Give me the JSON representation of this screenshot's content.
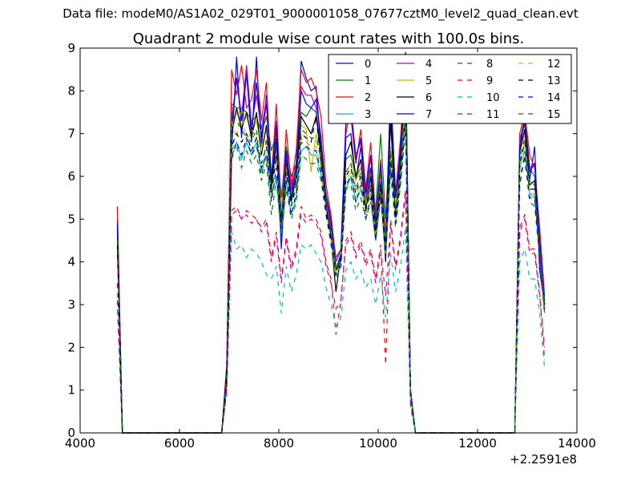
{
  "suptitle": "Data file: modeM0/AS1A02_029T01_9000001058_07677cztM0_level2_quad_clean.evt",
  "chart_data": {
    "type": "line",
    "title": "Quadrant 2 module wise count rates with 100.0s bins.",
    "xlabel": "",
    "ylabel": "",
    "xlim": [
      4000,
      14000
    ],
    "ylim": [
      0,
      9
    ],
    "x_offset_label": "+2.2591e8",
    "xticks": [
      4000,
      6000,
      8000,
      10000,
      12000,
      14000
    ],
    "yticks": [
      0,
      1,
      2,
      3,
      4,
      5,
      6,
      7,
      8,
      9
    ],
    "legend_position": "top-right",
    "x": [
      4750,
      4850,
      4950,
      5050,
      6850,
      6950,
      7050,
      7150,
      7250,
      7350,
      7450,
      7550,
      7650,
      7750,
      7850,
      7950,
      8050,
      8150,
      8250,
      8350,
      8450,
      8550,
      8650,
      8750,
      8850,
      8950,
      9050,
      9150,
      9250,
      9350,
      9450,
      9550,
      9650,
      9750,
      9850,
      9950,
      10050,
      10150,
      10250,
      10350,
      10450,
      10550,
      10650,
      10750,
      10850,
      12750,
      12850,
      12950,
      13050,
      13150,
      13250,
      13350
    ],
    "series": [
      {
        "name": "0",
        "color": "#0000ff",
        "dash": "solid",
        "values": [
          5.0,
          0,
          0,
          0,
          0,
          1.5,
          6.6,
          8.8,
          6.9,
          8.5,
          6.8,
          8.8,
          6.7,
          7.9,
          5.7,
          6.8,
          4.3,
          6.4,
          5.6,
          6.3,
          8.7,
          8.3,
          8.0,
          8.1,
          6.6,
          5.4,
          4.8,
          3.9,
          4.0,
          6.9,
          7.0,
          5.9,
          6.7,
          5.4,
          6.2,
          4.6,
          5.9,
          4.4,
          7.7,
          5.1,
          6.6,
          8.9,
          1.0,
          0,
          0,
          0,
          6.5,
          7.5,
          5.9,
          6.7,
          3.8,
          3.0
        ]
      },
      {
        "name": "1",
        "color": "#008000",
        "dash": "solid",
        "values": [
          4.7,
          0,
          0,
          0,
          0,
          1.3,
          7.7,
          7.6,
          7.6,
          7.5,
          7.3,
          7.4,
          7.0,
          7.4,
          6.6,
          7.0,
          5.5,
          6.7,
          6.0,
          6.3,
          7.5,
          7.4,
          7.6,
          7.5,
          6.3,
          5.6,
          5.0,
          4.1,
          4.3,
          6.4,
          6.5,
          6.0,
          6.2,
          5.7,
          6.1,
          5.2,
          7.0,
          5.0,
          7.2,
          5.5,
          6.5,
          8.1,
          1.0,
          0,
          0,
          0,
          6.8,
          7.4,
          6.2,
          6.0,
          4.6,
          3.0
        ]
      },
      {
        "name": "2",
        "color": "#ff0000",
        "dash": "solid",
        "values": [
          5.3,
          0,
          0,
          0,
          0,
          1.6,
          8.5,
          7.9,
          8.6,
          7.6,
          7.8,
          8.5,
          7.3,
          8.2,
          5.9,
          7.7,
          5.1,
          7.1,
          5.8,
          6.6,
          8.5,
          8.2,
          8.3,
          8.0,
          7.4,
          5.8,
          5.1,
          4.0,
          4.3,
          7.3,
          7.4,
          6.3,
          7.1,
          5.7,
          6.8,
          5.0,
          6.4,
          4.6,
          7.9,
          5.6,
          6.9,
          8.6,
          1.0,
          0,
          0,
          0,
          7.0,
          7.5,
          6.5,
          6.2,
          4.8,
          3.2
        ]
      },
      {
        "name": "3",
        "color": "#00bfbf",
        "dash": "solid",
        "values": [
          4.5,
          0,
          0,
          0,
          0,
          1.2,
          6.6,
          6.8,
          6.4,
          6.8,
          6.5,
          6.8,
          6.1,
          6.5,
          5.5,
          6.0,
          4.6,
          5.9,
          5.1,
          5.5,
          6.6,
          6.7,
          6.5,
          6.5,
          6.0,
          5.3,
          4.6,
          3.8,
          4.0,
          5.7,
          6.0,
          5.4,
          5.7,
          5.3,
          5.6,
          4.6,
          5.6,
          4.2,
          6.3,
          5.0,
          6.0,
          7.4,
          0.9,
          0,
          0,
          0,
          6.2,
          6.6,
          5.6,
          5.5,
          4.2,
          2.8
        ]
      },
      {
        "name": "4",
        "color": "#bf00bf",
        "dash": "solid",
        "values": [
          4.9,
          0,
          0,
          0,
          0,
          1.4,
          7.3,
          8.3,
          7.4,
          8.6,
          7.2,
          7.9,
          7.1,
          7.8,
          5.9,
          7.3,
          5.0,
          6.6,
          5.7,
          6.3,
          8.1,
          7.9,
          7.9,
          7.6,
          6.5,
          5.4,
          4.9,
          4.0,
          4.3,
          7.0,
          7.6,
          6.5,
          6.8,
          5.4,
          6.5,
          4.8,
          6.2,
          4.3,
          8.1,
          5.5,
          6.7,
          8.5,
          1.0,
          0,
          0,
          0,
          6.9,
          7.2,
          6.2,
          6.3,
          4.6,
          3.1
        ]
      },
      {
        "name": "5",
        "color": "#bfbf00",
        "dash": "solid",
        "values": [
          4.6,
          0,
          0,
          0,
          0,
          1.3,
          7.2,
          7.5,
          7.2,
          7.4,
          7.0,
          7.3,
          6.7,
          7.1,
          6.0,
          6.8,
          5.2,
          6.3,
          5.6,
          6.0,
          7.2,
          7.1,
          6.1,
          7.0,
          6.5,
          5.3,
          4.7,
          3.9,
          4.1,
          6.1,
          6.3,
          5.9,
          6.2,
          5.4,
          5.7,
          5.0,
          6.1,
          4.5,
          6.7,
          5.3,
          6.2,
          7.8,
          0.9,
          0,
          0,
          0,
          6.5,
          7.0,
          5.9,
          5.8,
          4.4,
          2.9
        ]
      },
      {
        "name": "6",
        "color": "#000000",
        "dash": "solid",
        "values": [
          4.8,
          0,
          0,
          0,
          0,
          1.4,
          7.0,
          7.6,
          7.1,
          7.5,
          6.9,
          7.5,
          6.5,
          7.2,
          5.8,
          6.9,
          4.9,
          6.4,
          5.4,
          6.0,
          7.4,
          7.2,
          7.0,
          7.4,
          6.6,
          5.3,
          4.6,
          3.3,
          4.2,
          6.5,
          6.8,
          6.0,
          6.4,
          5.2,
          6.0,
          4.6,
          5.8,
          4.0,
          7.4,
          5.0,
          6.3,
          8.9,
          1.0,
          0,
          0,
          0,
          6.6,
          7.1,
          5.8,
          5.9,
          4.3,
          2.9
        ]
      },
      {
        "name": "7",
        "color": "#0000ff",
        "dash": "solid",
        "values": [
          4.9,
          0,
          0,
          0,
          0,
          1.4,
          7.1,
          8.3,
          7.3,
          8.4,
          7.0,
          8.2,
          6.9,
          7.7,
          6.0,
          7.2,
          4.8,
          6.6,
          5.5,
          6.2,
          8.0,
          7.7,
          7.6,
          7.8,
          6.9,
          5.5,
          5.0,
          3.8,
          4.2,
          7.2,
          7.6,
          6.4,
          6.9,
          5.6,
          6.5,
          4.9,
          6.3,
          4.3,
          8.1,
          5.5,
          6.6,
          8.7,
          1.0,
          0,
          0,
          0,
          6.7,
          7.3,
          6.1,
          6.3,
          4.5,
          3.0
        ]
      },
      {
        "name": "8",
        "color": "#008000",
        "dash": "dashed",
        "values": [
          4.2,
          0,
          0,
          0,
          0,
          1.2,
          6.5,
          6.7,
          6.2,
          6.6,
          6.3,
          6.5,
          5.9,
          6.3,
          5.1,
          5.9,
          4.6,
          5.7,
          5.0,
          5.4,
          6.5,
          6.4,
          6.3,
          6.3,
          5.9,
          5.1,
          4.4,
          3.6,
          3.9,
          5.7,
          5.8,
          5.2,
          5.5,
          5.0,
          5.4,
          4.5,
          5.5,
          4.1,
          6.1,
          4.8,
          5.8,
          7.1,
          0.9,
          0,
          0,
          0,
          6.0,
          6.4,
          5.4,
          5.3,
          4.1,
          2.8
        ]
      },
      {
        "name": "9",
        "color": "#ff0000",
        "dash": "dashed",
        "values": [
          3.5,
          0,
          0,
          0,
          0,
          1.0,
          5.2,
          5.3,
          5.0,
          5.2,
          5.1,
          5.0,
          4.8,
          5.0,
          4.1,
          4.7,
          3.6,
          4.6,
          3.9,
          4.3,
          5.3,
          5.0,
          5.1,
          5.0,
          4.7,
          4.0,
          3.6,
          2.3,
          3.1,
          4.5,
          4.7,
          4.2,
          4.5,
          4.0,
          4.3,
          3.6,
          4.4,
          1.6,
          5.0,
          3.9,
          4.6,
          5.7,
          0.7,
          0,
          0,
          0,
          4.8,
          5.1,
          4.3,
          4.3,
          3.3,
          1.7
        ]
      },
      {
        "name": "10",
        "color": "#00bfbf",
        "dash": "dashed",
        "values": [
          2.9,
          0,
          0,
          0,
          0,
          0.9,
          4.7,
          4.3,
          4.4,
          4.1,
          4.3,
          4.2,
          4.0,
          3.7,
          3.6,
          3.9,
          2.8,
          3.9,
          3.3,
          3.7,
          4.4,
          4.3,
          4.4,
          4.2,
          4.0,
          3.4,
          3.0,
          2.5,
          2.7,
          3.8,
          4.0,
          3.6,
          3.8,
          3.4,
          3.6,
          3.0,
          3.7,
          2.7,
          4.2,
          3.3,
          3.9,
          4.8,
          0.6,
          0,
          0,
          0,
          4.0,
          4.3,
          3.6,
          3.6,
          2.8,
          1.5
        ]
      },
      {
        "name": "11",
        "color": "#bf00bf",
        "dash": "dashed",
        "values": [
          3.1,
          0,
          0,
          0,
          0,
          1.0,
          5.1,
          5.2,
          5.0,
          5.1,
          4.9,
          5.0,
          4.7,
          4.9,
          4.0,
          4.6,
          3.5,
          4.5,
          3.8,
          4.2,
          5.1,
          4.9,
          5.0,
          4.9,
          4.6,
          3.9,
          3.5,
          2.9,
          3.1,
          4.4,
          4.6,
          4.1,
          4.4,
          3.9,
          4.2,
          3.5,
          4.3,
          3.2,
          4.9,
          3.8,
          4.5,
          5.6,
          0.7,
          0,
          0,
          0,
          4.7,
          5.0,
          4.2,
          4.2,
          3.2,
          2.0
        ]
      },
      {
        "name": "12",
        "color": "#bfbf00",
        "dash": "dashed",
        "values": [
          4.3,
          0,
          0,
          0,
          0,
          1.2,
          7.3,
          6.9,
          7.6,
          6.8,
          7.1,
          6.9,
          6.6,
          6.7,
          5.5,
          6.4,
          4.8,
          6.0,
          5.3,
          5.7,
          6.9,
          6.8,
          6.7,
          6.7,
          6.2,
          5.2,
          4.5,
          3.7,
          4.0,
          5.9,
          6.1,
          5.5,
          5.9,
          5.1,
          5.6,
          4.6,
          5.7,
          4.2,
          6.4,
          5.0,
          6.0,
          7.4,
          0.9,
          0,
          0,
          0,
          6.2,
          6.7,
          5.6,
          5.6,
          4.2,
          2.9
        ]
      },
      {
        "name": "13",
        "color": "#000000",
        "dash": "dashed",
        "values": [
          4.4,
          0,
          0,
          0,
          0,
          1.3,
          6.7,
          7.0,
          6.8,
          7.0,
          6.6,
          6.9,
          6.3,
          6.7,
          5.6,
          6.5,
          4.9,
          6.1,
          5.3,
          5.8,
          7.0,
          6.9,
          6.8,
          7.4,
          6.3,
          5.2,
          4.6,
          3.8,
          4.0,
          6.0,
          6.2,
          5.6,
          6.0,
          5.2,
          5.7,
          4.7,
          5.8,
          4.3,
          6.5,
          5.1,
          6.1,
          7.6,
          0.9,
          0,
          0,
          0,
          6.3,
          6.8,
          5.7,
          5.7,
          4.3,
          2.9
        ]
      },
      {
        "name": "14",
        "color": "#0000ff",
        "dash": "dashed",
        "values": [
          4.3,
          0,
          0,
          0,
          0,
          1.2,
          6.4,
          6.8,
          6.5,
          6.9,
          6.5,
          6.7,
          6.2,
          6.5,
          5.4,
          6.2,
          4.6,
          5.9,
          5.1,
          5.6,
          6.8,
          6.7,
          6.6,
          6.6,
          6.1,
          5.1,
          4.5,
          3.7,
          3.9,
          5.8,
          6.0,
          5.4,
          5.8,
          5.0,
          5.5,
          4.5,
          5.6,
          4.1,
          6.3,
          4.9,
          5.9,
          7.3,
          0.9,
          0,
          0,
          0,
          5.8,
          6.5,
          5.5,
          5.5,
          4.1,
          2.8
        ]
      },
      {
        "name": "15",
        "color": "#008000",
        "dash": "dashed",
        "values": [
          4.5,
          0,
          0,
          0,
          0,
          1.3,
          7.5,
          7.3,
          7.1,
          6.9,
          6.8,
          7.1,
          5.9,
          6.9,
          5.7,
          6.6,
          5.0,
          6.2,
          5.4,
          5.9,
          7.1,
          7.0,
          6.9,
          6.9,
          6.4,
          5.3,
          4.7,
          3.8,
          4.1,
          6.1,
          6.3,
          5.7,
          6.1,
          5.3,
          5.8,
          4.8,
          6.1,
          4.3,
          6.6,
          5.2,
          6.2,
          7.7,
          0.9,
          0,
          0,
          0,
          6.4,
          6.9,
          5.8,
          5.8,
          4.4,
          2.9
        ]
      }
    ]
  }
}
